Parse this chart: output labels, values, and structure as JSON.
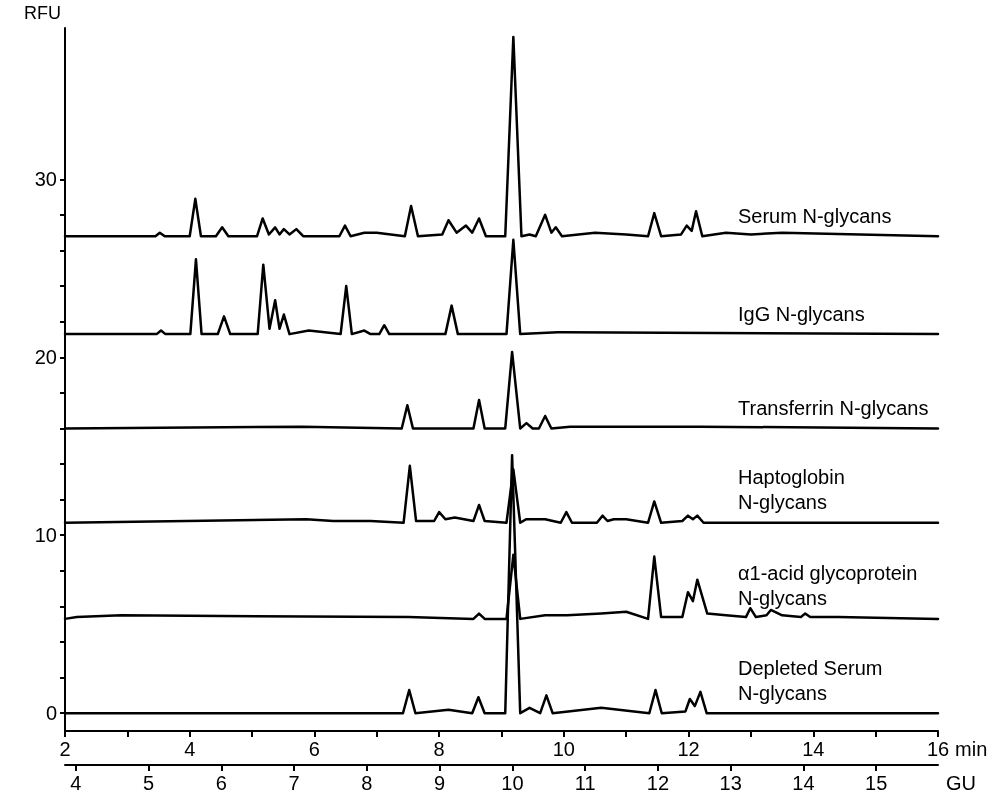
{
  "chart_data": {
    "type": "line",
    "xlabel": "min",
    "ylabel": "RFU",
    "x2label": "GU",
    "legend": false,
    "grid": false,
    "marker": "none",
    "line_style": "solid",
    "xlim": [
      2,
      16
    ],
    "xticks": [
      2,
      {
        "value": 3,
        "label": null
      },
      4,
      {
        "value": 5,
        "label": null
      },
      6,
      {
        "value": 7,
        "label": null
      },
      8,
      {
        "value": 9,
        "label": null
      },
      10,
      {
        "value": 11,
        "label": null
      },
      12,
      {
        "value": 13,
        "label": null
      },
      14,
      {
        "value": 15,
        "label": null
      },
      16
    ],
    "x2lim": [
      3.85,
      15.85
    ],
    "x2ticks": [
      4,
      5,
      6,
      7,
      8,
      9,
      10,
      11,
      12,
      13,
      14,
      15
    ],
    "ylim": [
      -1,
      38.5
    ],
    "yticks": [
      0,
      {
        "value": 2,
        "label": null
      },
      {
        "value": 4,
        "label": null
      },
      {
        "value": 6,
        "label": null
      },
      {
        "value": 8,
        "label": null
      },
      10,
      {
        "value": 12,
        "label": null
      },
      {
        "value": 14,
        "label": null
      },
      {
        "value": 16,
        "label": null
      },
      {
        "value": 18,
        "label": null
      },
      20,
      {
        "value": 22,
        "label": null
      },
      {
        "value": 24,
        "label": null
      },
      {
        "value": 26,
        "label": null
      },
      {
        "value": 28,
        "label": null
      },
      30
    ],
    "series": [
      {
        "name": "Serum N-glycans",
        "color": "#000000",
        "x": [
          2,
          3.45,
          3.52,
          3.6,
          4.0,
          4.09,
          4.18,
          4.42,
          4.52,
          4.62,
          5.08,
          5.17,
          5.27,
          5.37,
          5.44,
          5.51,
          5.6,
          5.71,
          5.82,
          6.4,
          6.49,
          6.58,
          6.8,
          7.0,
          7.45,
          7.55,
          7.66,
          8.05,
          8.15,
          8.28,
          8.43,
          8.53,
          8.64,
          8.75,
          9.06,
          9.19,
          9.32,
          9.45,
          9.55,
          9.7,
          9.8,
          9.87,
          9.97,
          10.5,
          11.0,
          11.35,
          11.45,
          11.56,
          11.88,
          11.97,
          12.05,
          12.12,
          12.22,
          12.6,
          13.0,
          13.5,
          16
        ],
        "values": [
          26.8,
          26.8,
          27.0,
          26.8,
          26.8,
          28.9,
          26.8,
          26.8,
          27.3,
          26.8,
          26.8,
          27.8,
          26.9,
          27.3,
          26.9,
          27.2,
          26.9,
          27.2,
          26.8,
          26.8,
          27.4,
          26.8,
          27.0,
          27.0,
          26.8,
          28.5,
          26.8,
          26.9,
          27.7,
          27.0,
          27.4,
          27.0,
          27.8,
          26.8,
          26.8,
          38.0,
          26.8,
          26.9,
          26.8,
          28.0,
          27.0,
          27.3,
          26.8,
          27.0,
          26.9,
          26.8,
          28.1,
          26.8,
          26.9,
          27.4,
          27.1,
          28.2,
          26.8,
          27.0,
          26.9,
          27.0,
          26.8
        ]
      },
      {
        "name": "IgG N-glycans",
        "color": "#000000",
        "x": [
          2,
          3.47,
          3.54,
          3.61,
          4.01,
          4.1,
          4.19,
          4.45,
          4.55,
          4.65,
          5.09,
          5.18,
          5.28,
          5.37,
          5.44,
          5.51,
          5.6,
          5.91,
          6.42,
          6.51,
          6.6,
          6.8,
          6.9,
          7.04,
          7.12,
          7.2,
          8.1,
          8.2,
          8.3,
          9.08,
          9.19,
          9.3,
          9.9,
          10.0,
          16
        ],
        "values": [
          21.3,
          21.3,
          21.5,
          21.3,
          21.3,
          25.5,
          21.3,
          21.3,
          22.3,
          21.3,
          21.3,
          25.2,
          21.6,
          23.2,
          21.6,
          22.4,
          21.3,
          21.5,
          21.3,
          24.0,
          21.3,
          21.5,
          21.3,
          21.3,
          21.8,
          21.3,
          21.3,
          22.9,
          21.3,
          21.3,
          26.6,
          21.3,
          21.4,
          21.4,
          21.3
        ]
      },
      {
        "name": "Transferrin N-glycans",
        "color": "#000000",
        "x": [
          2,
          5.8,
          7.4,
          7.49,
          7.58,
          8.55,
          8.64,
          8.73,
          9.06,
          9.17,
          9.3,
          9.4,
          9.5,
          9.6,
          9.7,
          9.8,
          10.1,
          11.5,
          12.2,
          16
        ],
        "values": [
          16.0,
          16.1,
          16.0,
          17.3,
          16.0,
          16.0,
          17.6,
          16.0,
          16.0,
          20.3,
          16.0,
          16.3,
          16.0,
          16.0,
          16.7,
          16.0,
          16.1,
          16.1,
          16.1,
          16.0
        ]
      },
      {
        "name": "Haptoglobin N-glycans",
        "color": "#000000",
        "x": [
          2,
          5.87,
          6.3,
          6.5,
          6.9,
          7.43,
          7.53,
          7.63,
          7.92,
          8.0,
          8.1,
          8.25,
          8.55,
          8.64,
          8.73,
          9.08,
          9.19,
          9.3,
          9.4,
          9.7,
          9.95,
          10.04,
          10.13,
          10.53,
          10.62,
          10.7,
          10.8,
          11.0,
          11.35,
          11.45,
          11.56,
          11.9,
          11.99,
          12.07,
          12.14,
          12.24,
          16
        ],
        "values": [
          10.7,
          10.9,
          10.8,
          10.8,
          10.8,
          10.7,
          13.9,
          10.8,
          10.8,
          11.3,
          10.9,
          11.0,
          10.8,
          11.7,
          10.8,
          10.7,
          13.7,
          10.7,
          10.9,
          10.9,
          10.7,
          11.3,
          10.7,
          10.7,
          11.1,
          10.8,
          10.9,
          10.9,
          10.7,
          11.9,
          10.7,
          10.8,
          11.1,
          10.9,
          11.1,
          10.7,
          10.7
        ]
      },
      {
        "name": "α1-acid glycoprotein N-glycans",
        "color": "#000000",
        "x": [
          2,
          2.19,
          2.9,
          7.51,
          8.55,
          8.64,
          8.73,
          9.08,
          9.19,
          9.3,
          9.7,
          10.05,
          10.6,
          11.0,
          11.35,
          11.45,
          11.56,
          11.9,
          11.99,
          12.07,
          12.14,
          12.3,
          12.6,
          12.92,
          12.99,
          13.08,
          13.25,
          13.32,
          13.5,
          13.8,
          13.87,
          13.95,
          14.4,
          16
        ],
        "values": [
          5.3,
          5.4,
          5.5,
          5.4,
          5.3,
          5.6,
          5.3,
          5.3,
          8.9,
          5.3,
          5.5,
          5.5,
          5.6,
          5.7,
          5.3,
          8.8,
          5.4,
          5.4,
          6.8,
          6.3,
          7.5,
          5.6,
          5.5,
          5.4,
          5.9,
          5.4,
          5.5,
          5.8,
          5.5,
          5.4,
          5.6,
          5.4,
          5.4,
          5.3
        ]
      },
      {
        "name": "Depleted Serum N-glycans",
        "color": "#000000",
        "x": [
          2,
          7.42,
          7.52,
          7.62,
          8.15,
          8.53,
          8.63,
          8.73,
          9.06,
          9.17,
          9.3,
          9.45,
          9.62,
          9.72,
          9.82,
          10.6,
          11.37,
          11.47,
          11.57,
          11.95,
          12.02,
          12.1,
          12.19,
          12.29,
          16
        ],
        "values": [
          0,
          0,
          1.3,
          0,
          0.2,
          0,
          0.9,
          0,
          0,
          14.5,
          0,
          0.3,
          0,
          1.0,
          0,
          0.3,
          0,
          1.3,
          0,
          0.1,
          0.8,
          0.4,
          1.2,
          0,
          0
        ]
      }
    ]
  }
}
